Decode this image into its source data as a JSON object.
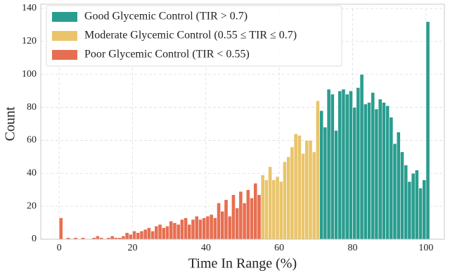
{
  "chart_data": {
    "type": "histogram",
    "x_label": "Time In Range (%)",
    "y_label": "Count",
    "xlim": [
      -5,
      105
    ],
    "xticks": [
      0,
      20,
      40,
      60,
      80,
      100
    ],
    "ylim": [
      0,
      140
    ],
    "yticks": [
      0,
      20,
      40,
      60,
      80,
      100,
      120,
      140
    ],
    "grid": true,
    "legend": "upper left",
    "series": [
      {
        "name": "Good Glycemic Control (TIR > 0.7)",
        "color": "#2a9d8f",
        "bins": [
          71,
          72,
          73,
          74,
          75,
          76,
          77,
          78,
          79,
          80,
          81,
          82,
          83,
          84,
          85,
          86,
          87,
          88,
          89,
          90,
          91,
          92,
          93,
          94,
          95,
          96,
          97,
          98,
          99,
          100,
          101
        ],
        "values": [
          78,
          68,
          91,
          88,
          66,
          90,
          91,
          88,
          90,
          80,
          92,
          100,
          82,
          83,
          89,
          79,
          85,
          83,
          81,
          74,
          58,
          65,
          53,
          45,
          35,
          40,
          42,
          31,
          36,
          132
        ]
      },
      {
        "name": "Moderate Glycemic Control (0.55 ≤ TIR ≤ 0.7)",
        "color": "#e9c46a",
        "bins": [
          55,
          56,
          57,
          58,
          59,
          60,
          61,
          62,
          63,
          64,
          65,
          66,
          67,
          68,
          69,
          70,
          71
        ],
        "values": [
          39,
          36,
          44,
          36,
          38,
          35,
          47,
          50,
          56,
          64,
          63,
          52,
          60,
          60,
          53,
          84
        ]
      },
      {
        "name": "Poor Glycemic Control (TIR < 0.55)",
        "color": "#e76f51",
        "bins": [
          0,
          1,
          2,
          3,
          4,
          5,
          6,
          7,
          8,
          9,
          10,
          11,
          12,
          13,
          14,
          15,
          16,
          17,
          18,
          19,
          20,
          21,
          22,
          23,
          24,
          25,
          26,
          27,
          28,
          29,
          30,
          31,
          32,
          33,
          34,
          35,
          36,
          37,
          38,
          39,
          40,
          41,
          42,
          43,
          44,
          45,
          46,
          47,
          48,
          49,
          50,
          51,
          52,
          53,
          54,
          55
        ],
        "values": [
          13,
          0,
          1,
          0,
          1,
          0,
          1,
          0,
          0,
          1,
          2,
          1,
          0,
          1,
          2,
          1,
          1,
          2,
          4,
          3,
          5,
          4,
          5,
          6,
          7,
          5,
          8,
          9,
          7,
          8,
          11,
          10,
          9,
          12,
          13,
          9,
          12,
          14,
          12,
          13,
          14,
          15,
          13,
          22,
          17,
          24,
          14,
          27,
          19,
          29,
          22,
          30,
          25,
          34,
          27
        ]
      }
    ]
  }
}
